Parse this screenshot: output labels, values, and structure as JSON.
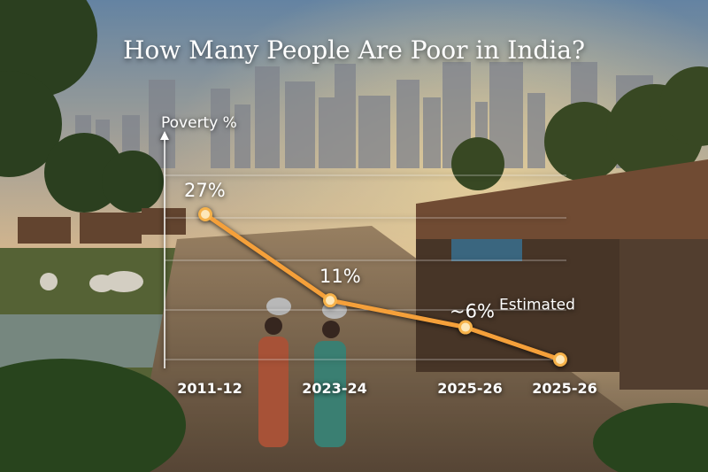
{
  "colors": {
    "sky_top": "#6d8fb0",
    "sky_mid": "#e8c79a",
    "sun_glow": "#fbe2a8",
    "ground": "#6b5a45",
    "foliage": "#3f5a2c",
    "line": "#f5a03a",
    "marker": "#f6b24a"
  },
  "chart_data": {
    "type": "line",
    "title": "How Many People Are Poor in India?",
    "ylabel": "Poverty %",
    "xlabel": "",
    "categories": [
      "2011-12",
      "2023-24",
      "2025-26",
      "2025-26"
    ],
    "values": [
      27,
      11,
      6,
      0
    ],
    "data_labels": [
      "27%",
      "11%",
      "~6%",
      ""
    ],
    "annotations": [
      {
        "point": 2,
        "text": "Estimated"
      }
    ],
    "ylim": [
      0,
      30
    ],
    "grid": true,
    "legend": "none"
  }
}
